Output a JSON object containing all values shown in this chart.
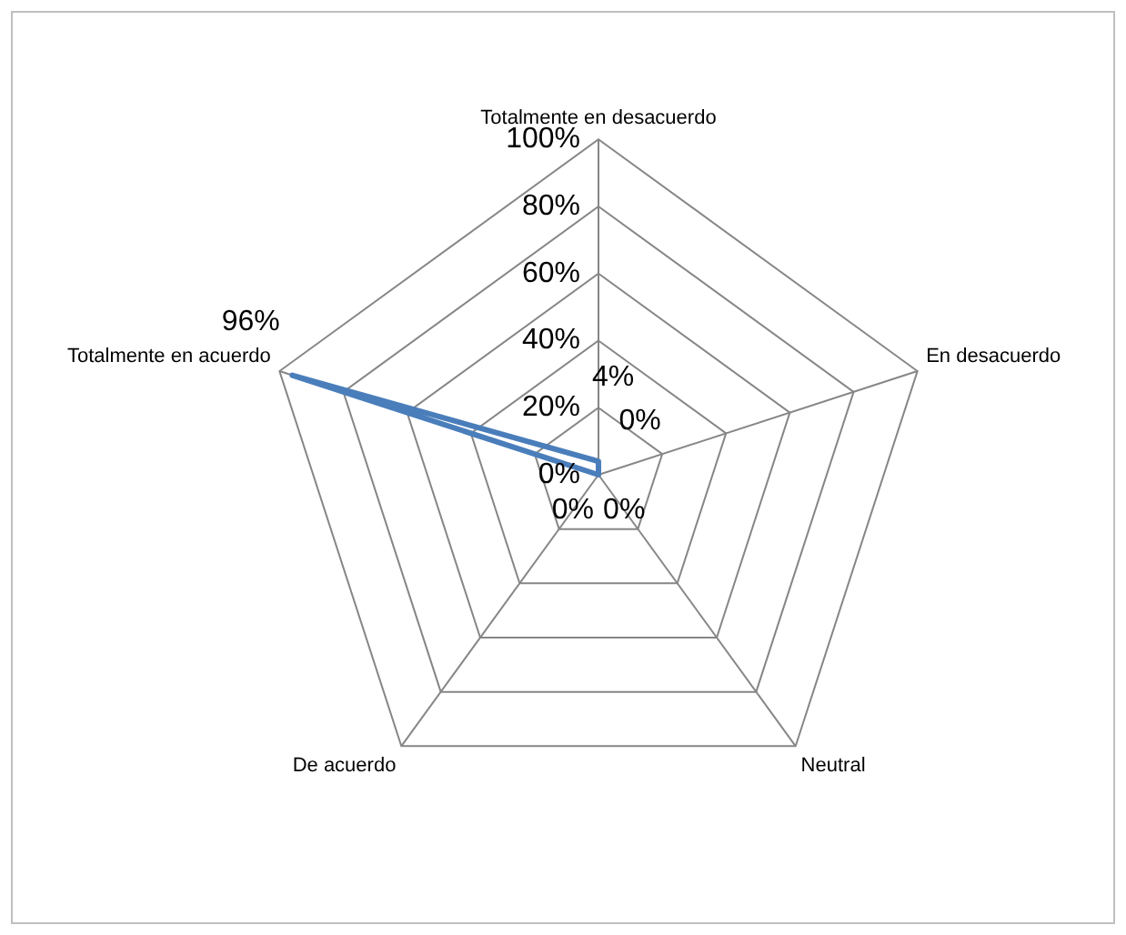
{
  "chart_data": {
    "type": "radar",
    "categories": [
      "Totalmente en desacuerdo",
      "En desacuerdo",
      "Neutral",
      "De acuerdo",
      "Totalmente en acuerdo"
    ],
    "series": [
      {
        "color": "#4a7ebb",
        "values": [
          4,
          0,
          0,
          0,
          96
        ]
      }
    ],
    "ylim": [
      0,
      100
    ],
    "yticks": [
      {
        "value": 0,
        "label": "0%"
      },
      {
        "value": 20,
        "label": "20%"
      },
      {
        "value": 40,
        "label": "40%"
      },
      {
        "value": 60,
        "label": "60%"
      },
      {
        "value": 80,
        "label": "80%"
      },
      {
        "value": 100,
        "label": "100%"
      }
    ],
    "value_labels": [
      "4%",
      "0%",
      "0%",
      "0%",
      "96%"
    ],
    "grid": true,
    "legend": false,
    "marker": "none",
    "line_style": "solid"
  }
}
